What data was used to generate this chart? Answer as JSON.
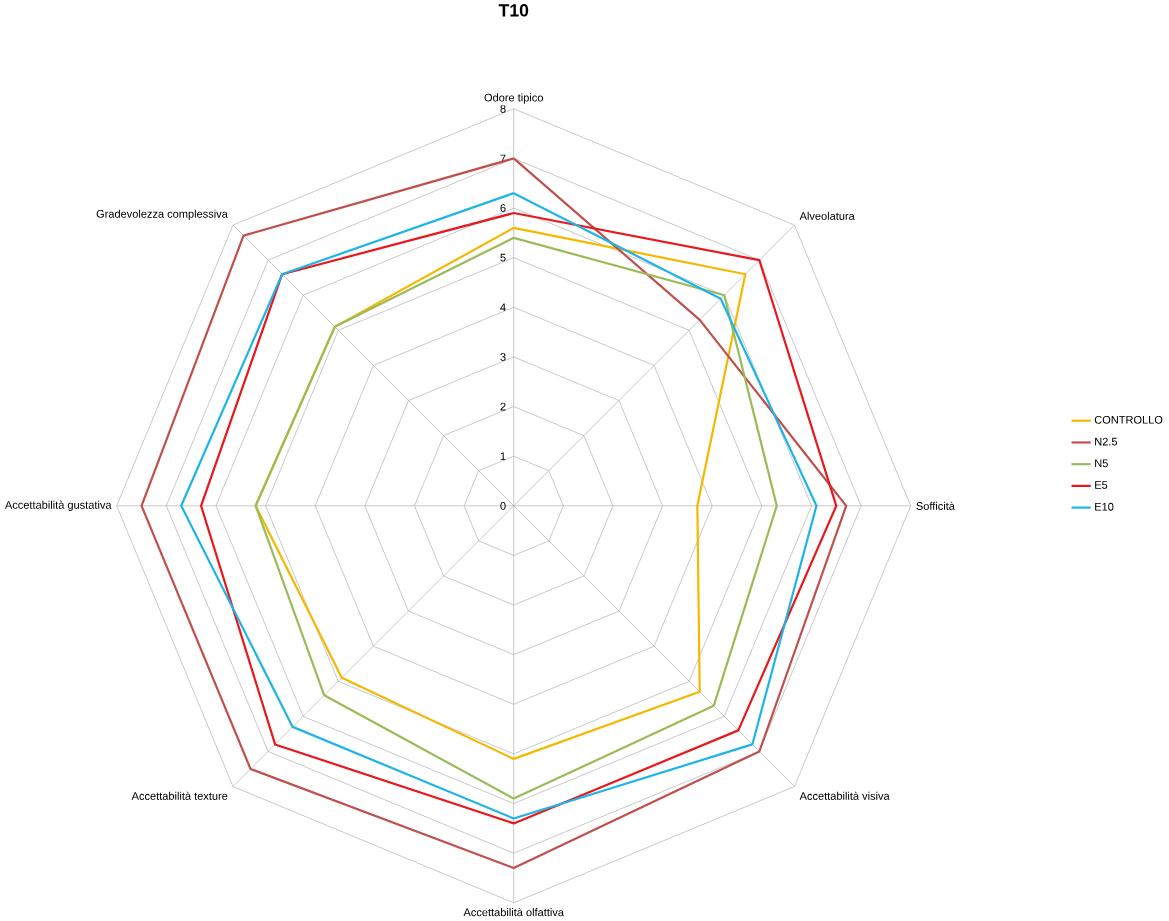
{
  "chart_data": {
    "type": "radar",
    "title": "T10",
    "categories": [
      "Odore tipico",
      "Alveolatura",
      "Sofficità",
      "Accettabilità visiva",
      "Accettabilità olfattiva",
      "Accettabilità texture",
      "Accettabilità gustativa",
      "Gradevolezza complessiva"
    ],
    "ylim": [
      0,
      8
    ],
    "yticks": [
      0,
      1,
      2,
      3,
      4,
      5,
      6,
      7,
      8
    ],
    "grid": true,
    "legend": "right",
    "marker": "none",
    "line_style": "solid",
    "series": [
      {
        "name": "CONTROLLO",
        "color": "#f5b800",
        "values": [
          5.6,
          6.6,
          3.7,
          5.3,
          5.1,
          4.9,
          5.2,
          5.1
        ]
      },
      {
        "name": "N2.5",
        "color": "#c0504d",
        "values": [
          7.0,
          5.3,
          6.7,
          7.0,
          7.3,
          7.5,
          7.5,
          7.7
        ]
      },
      {
        "name": "N5",
        "color": "#9bbb59",
        "values": [
          5.4,
          6.0,
          5.3,
          5.7,
          5.9,
          5.4,
          5.2,
          5.1
        ]
      },
      {
        "name": "E5",
        "color": "#e8181c",
        "values": [
          5.9,
          7.0,
          6.5,
          6.4,
          6.4,
          6.8,
          6.3,
          6.6
        ]
      },
      {
        "name": "E10",
        "color": "#1fb4e6",
        "values": [
          6.3,
          5.9,
          6.1,
          6.8,
          6.3,
          6.3,
          6.7,
          6.6
        ]
      }
    ]
  }
}
